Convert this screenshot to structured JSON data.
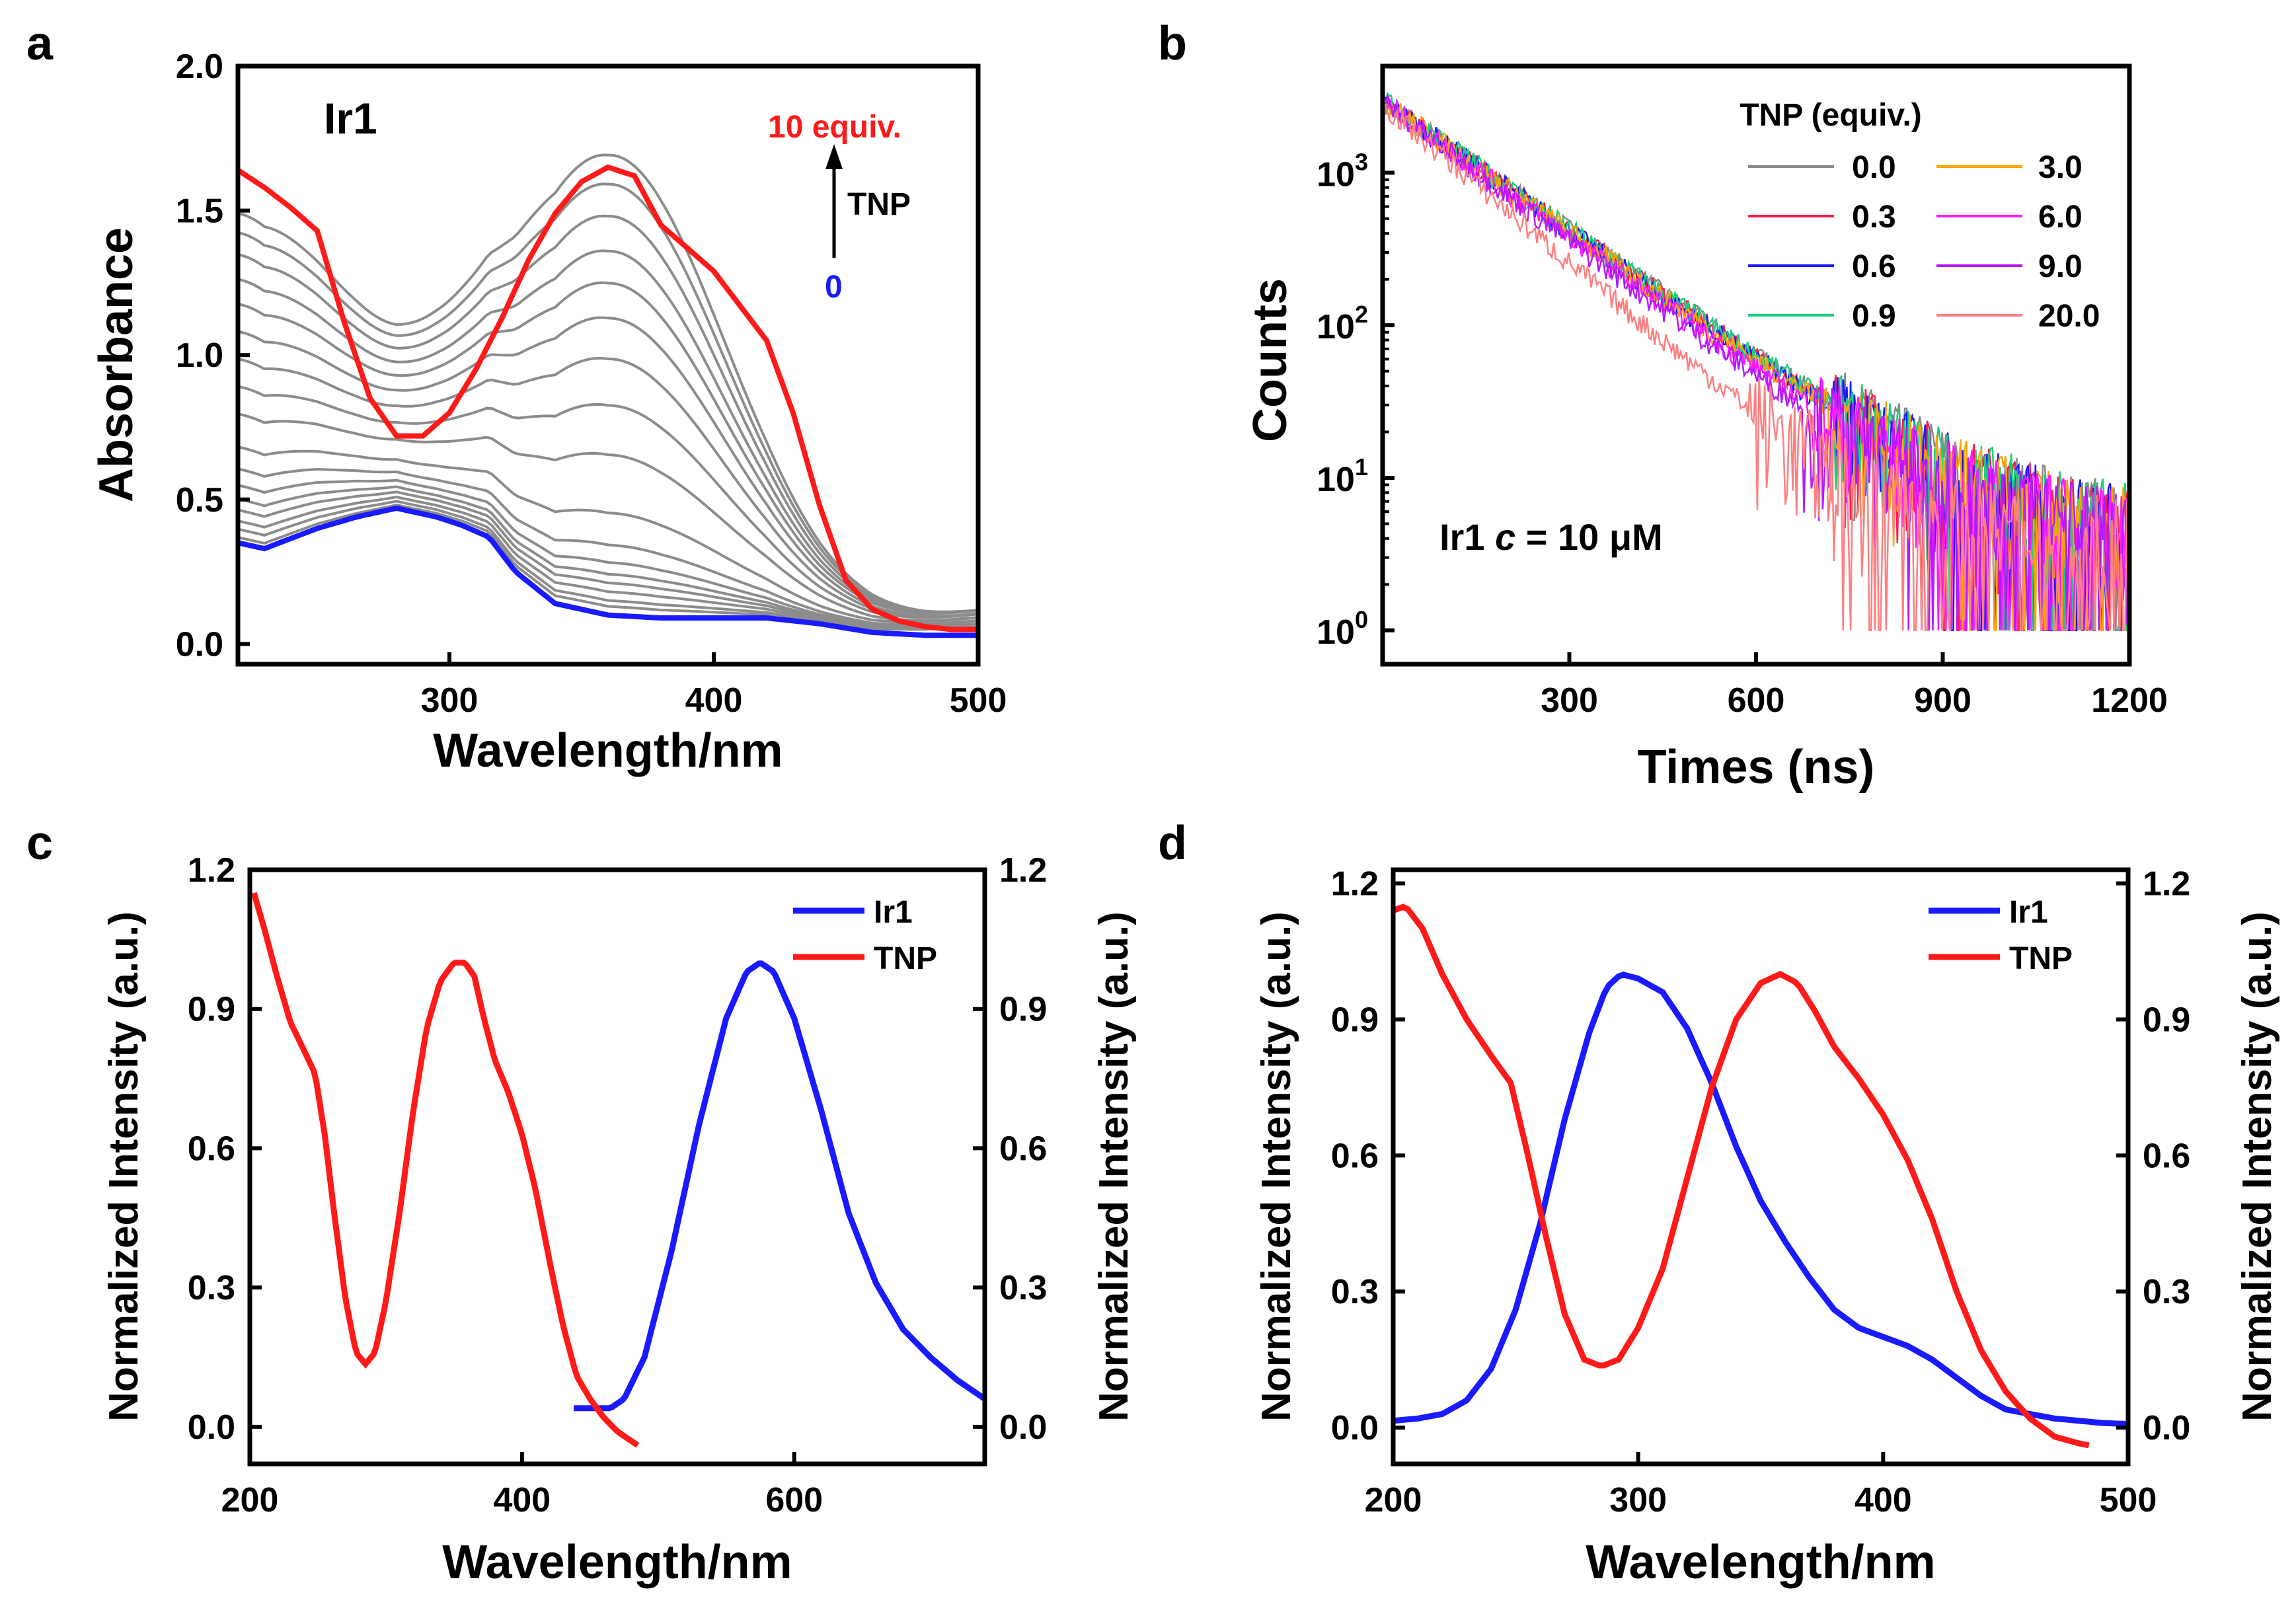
{
  "figure": {
    "panel_labels": [
      "a",
      "b",
      "c",
      "d"
    ]
  },
  "colors": {
    "red": "#ff1a1a",
    "blue": "#1a1aff",
    "gray": "#8c8c8c",
    "black": "#000000"
  },
  "chart_data": [
    {
      "id": "a",
      "type": "line",
      "title": "Ir1",
      "xlabel": "Wavelength/nm",
      "ylabel": "Absorbance",
      "xlim": [
        220,
        500
      ],
      "ylim": [
        -0.07,
        2.0
      ],
      "xticks": [
        300,
        400,
        500
      ],
      "yticks": [
        0.0,
        0.5,
        1.0,
        1.5,
        2.0
      ],
      "xtick_labels": [
        "300",
        "400",
        "500"
      ],
      "ytick_labels": [
        "0.0",
        "0.5",
        "1.0",
        "1.5",
        "2.0"
      ],
      "annotations": {
        "top_label": "10 equiv.",
        "arrow_label": "TNP",
        "bottom_label": "0"
      },
      "series": [
        {
          "name": "0 equiv.",
          "color": "#1a1aff",
          "x": [
            220,
            230,
            250,
            265,
            280,
            295,
            305,
            315,
            325,
            340,
            360,
            380,
            400,
            420,
            440,
            460,
            480,
            500
          ],
          "y": [
            0.35,
            0.33,
            0.4,
            0.44,
            0.47,
            0.44,
            0.41,
            0.37,
            0.25,
            0.14,
            0.1,
            0.09,
            0.09,
            0.09,
            0.07,
            0.04,
            0.03,
            0.03
          ]
        },
        {
          "name": "10 equiv.",
          "color": "#ff1a1a",
          "x": [
            220,
            230,
            240,
            250,
            260,
            270,
            280,
            290,
            300,
            310,
            320,
            330,
            340,
            350,
            360,
            370,
            380,
            400,
            420,
            430,
            440,
            450,
            460,
            470,
            480,
            490,
            500
          ],
          "y": [
            1.64,
            1.58,
            1.51,
            1.43,
            1.12,
            0.85,
            0.72,
            0.72,
            0.8,
            0.95,
            1.13,
            1.33,
            1.49,
            1.6,
            1.65,
            1.62,
            1.45,
            1.29,
            1.05,
            0.8,
            0.48,
            0.22,
            0.12,
            0.08,
            0.06,
            0.05,
            0.05
          ]
        },
        {
          "name": "gray",
          "color": "#8c8c8c",
          "a": 1.55,
          "b": 1.58,
          "t": 0.08
        },
        {
          "name": "gray",
          "color": "#8c8c8c",
          "a": 1.48,
          "b": 1.48,
          "t": 0.08
        },
        {
          "name": "gray",
          "color": "#8c8c8c",
          "a": 1.4,
          "b": 1.37,
          "t": 0.08
        },
        {
          "name": "gray",
          "color": "#8c8c8c",
          "a": 1.31,
          "b": 1.25,
          "t": 0.08
        },
        {
          "name": "gray",
          "color": "#8c8c8c",
          "a": 1.22,
          "b": 1.14,
          "t": 0.08
        },
        {
          "name": "gray",
          "color": "#8c8c8c",
          "a": 1.12,
          "b": 1.02,
          "t": 0.07
        },
        {
          "name": "gray",
          "color": "#8c8c8c",
          "a": 1.02,
          "b": 0.88,
          "t": 0.07
        },
        {
          "name": "gray",
          "color": "#8c8c8c",
          "a": 0.92,
          "b": 0.72,
          "t": 0.07
        },
        {
          "name": "gray",
          "color": "#8c8c8c",
          "a": 0.82,
          "b": 0.55,
          "t": 0.06
        },
        {
          "name": "gray",
          "color": "#8c8c8c",
          "a": 0.7,
          "b": 0.35,
          "t": 0.06
        },
        {
          "name": "gray",
          "color": "#8c8c8c",
          "a": 0.62,
          "b": 0.24,
          "t": 0.05
        },
        {
          "name": "gray",
          "color": "#8c8c8c",
          "a": 0.56,
          "b": 0.18,
          "t": 0.05
        },
        {
          "name": "gray",
          "color": "#8c8c8c",
          "a": 0.51,
          "b": 0.14,
          "t": 0.05
        },
        {
          "name": "gray",
          "color": "#8c8c8c",
          "a": 0.47,
          "b": 0.11,
          "t": 0.04
        },
        {
          "name": "gray",
          "color": "#8c8c8c",
          "a": 0.43,
          "b": 0.08,
          "t": 0.04
        },
        {
          "name": "gray",
          "color": "#8c8c8c",
          "a": 0.4,
          "b": 0.05,
          "t": 0.03
        },
        {
          "name": "gray",
          "color": "#8c8c8c",
          "a": 0.37,
          "b": 0.03,
          "t": 0.03
        }
      ]
    },
    {
      "id": "b",
      "type": "line",
      "yscale": "log",
      "xlabel": "Times (ns)",
      "ylabel": "Counts",
      "xlim": [
        0,
        1200
      ],
      "ylim": [
        0.6,
        5000
      ],
      "xticks": [
        300,
        600,
        900,
        1200
      ],
      "xtick_labels": [
        "300",
        "600",
        "900",
        "1200"
      ],
      "yticks": [
        1,
        10,
        100,
        1000
      ],
      "ytick_labels": [
        {
          "base": "10",
          "exp": "0"
        },
        {
          "base": "10",
          "exp": "1"
        },
        {
          "base": "10",
          "exp": "2"
        },
        {
          "base": "10",
          "exp": "3"
        }
      ],
      "annotation": {
        "prefix": "Ir1 ",
        "italic": "c",
        "suffix": " = 10 μM"
      },
      "legend_title": "TNP (equiv.)",
      "series": [
        {
          "name": "0.0",
          "color": "#8a8a8a",
          "A": 3000,
          "tau": 153
        },
        {
          "name": "0.3",
          "color": "#ff1a4b",
          "A": 3000,
          "tau": 152
        },
        {
          "name": "0.6",
          "color": "#1a1aff",
          "A": 3000,
          "tau": 151
        },
        {
          "name": "0.9",
          "color": "#1ad07a",
          "A": 3000,
          "tau": 153
        },
        {
          "name": "3.0",
          "color": "#ffa500",
          "A": 3000,
          "tau": 150
        },
        {
          "name": "6.0",
          "color": "#ff1aff",
          "A": 2950,
          "tau": 146
        },
        {
          "name": "9.0",
          "color": "#b41aff",
          "A": 2900,
          "tau": 143
        },
        {
          "name": "20.0",
          "color": "#ff7f7f",
          "A": 2800,
          "tau": 125
        }
      ]
    },
    {
      "id": "c",
      "type": "line",
      "xlabel": "Wavelength/nm",
      "ylabel": "Normalized Intensity (a.u.)",
      "ylabel_right": "Normalized Intensity (a.u.)",
      "xlim": [
        200,
        740
      ],
      "ylim": [
        -0.08,
        1.2
      ],
      "xticks": [
        200,
        400,
        600
      ],
      "xtick_labels": [
        "200",
        "400",
        "600"
      ],
      "yticks": [
        0.0,
        0.3,
        0.6,
        0.9,
        1.2
      ],
      "ytick_labels": [
        "0.0",
        "0.3",
        "0.6",
        "0.9",
        "1.2"
      ],
      "legend": [
        "Ir1",
        "TNP"
      ],
      "series": [
        {
          "name": "Ir1",
          "color": "#1a1aff",
          "x": [
            438,
            455,
            465,
            475,
            490,
            510,
            530,
            550,
            565,
            575,
            585,
            600,
            620,
            640,
            660,
            680,
            700,
            720,
            740
          ],
          "y": [
            0.04,
            0.04,
            0.04,
            0.06,
            0.15,
            0.38,
            0.65,
            0.88,
            0.98,
            1.0,
            0.98,
            0.88,
            0.68,
            0.46,
            0.31,
            0.21,
            0.15,
            0.1,
            0.06
          ]
        },
        {
          "name": "TNP",
          "color": "#ff1a1a",
          "x": [
            203,
            210,
            220,
            230,
            240,
            248,
            255,
            262,
            270,
            278,
            285,
            292,
            300,
            310,
            320,
            330,
            340,
            350,
            358,
            365,
            372,
            380,
            390,
            400,
            410,
            420,
            430,
            440,
            450,
            460,
            470,
            480,
            485
          ],
          "y": [
            1.15,
            1.08,
            0.97,
            0.87,
            0.81,
            0.76,
            0.63,
            0.46,
            0.28,
            0.16,
            0.135,
            0.16,
            0.27,
            0.46,
            0.68,
            0.86,
            0.96,
            1.0,
            1.0,
            0.97,
            0.88,
            0.79,
            0.72,
            0.63,
            0.51,
            0.36,
            0.22,
            0.11,
            0.06,
            0.02,
            -0.01,
            -0.03,
            -0.04
          ]
        }
      ]
    },
    {
      "id": "d",
      "type": "line",
      "xlabel": "Wavelength/nm",
      "ylabel": "Normalized Intensity (a.u.)",
      "ylabel_right": "Normalized Intensity (a.u.)",
      "xlim": [
        200,
        500
      ],
      "ylim": [
        -0.08,
        1.23
      ],
      "xticks": [
        200,
        300,
        400,
        500
      ],
      "xtick_labels": [
        "200",
        "300",
        "400",
        "500"
      ],
      "yticks": [
        0.0,
        0.3,
        0.6,
        0.9,
        1.2
      ],
      "ytick_labels": [
        "0.0",
        "0.3",
        "0.6",
        "0.9",
        "1.2"
      ],
      "legend": [
        "Ir1",
        "TNP"
      ],
      "series": [
        {
          "name": "Ir1",
          "color": "#1a1aff",
          "x": [
            200,
            210,
            220,
            230,
            240,
            250,
            260,
            270,
            280,
            287,
            293,
            300,
            310,
            320,
            330,
            340,
            350,
            360,
            370,
            380,
            390,
            400,
            410,
            420,
            430,
            440,
            450,
            460,
            470,
            480,
            490,
            500
          ],
          "y": [
            0.015,
            0.02,
            0.03,
            0.06,
            0.13,
            0.26,
            0.45,
            0.68,
            0.87,
            0.97,
            1.0,
            0.99,
            0.96,
            0.88,
            0.76,
            0.62,
            0.5,
            0.41,
            0.33,
            0.26,
            0.22,
            0.2,
            0.18,
            0.15,
            0.11,
            0.07,
            0.04,
            0.03,
            0.02,
            0.015,
            0.01,
            0.008
          ]
        },
        {
          "name": "TNP",
          "color": "#ff1a1a",
          "x": [
            200,
            205,
            212,
            220,
            230,
            240,
            248,
            255,
            262,
            270,
            278,
            285,
            292,
            300,
            310,
            320,
            330,
            340,
            350,
            358,
            365,
            372,
            380,
            390,
            400,
            410,
            420,
            430,
            440,
            450,
            460,
            470,
            480,
            485
          ],
          "y": [
            1.14,
            1.15,
            1.1,
            1.0,
            0.9,
            0.82,
            0.76,
            0.6,
            0.43,
            0.25,
            0.15,
            0.135,
            0.15,
            0.22,
            0.35,
            0.55,
            0.75,
            0.9,
            0.98,
            1.0,
            0.98,
            0.92,
            0.84,
            0.77,
            0.69,
            0.59,
            0.46,
            0.3,
            0.17,
            0.08,
            0.02,
            -0.02,
            -0.035,
            -0.04
          ]
        }
      ]
    }
  ]
}
